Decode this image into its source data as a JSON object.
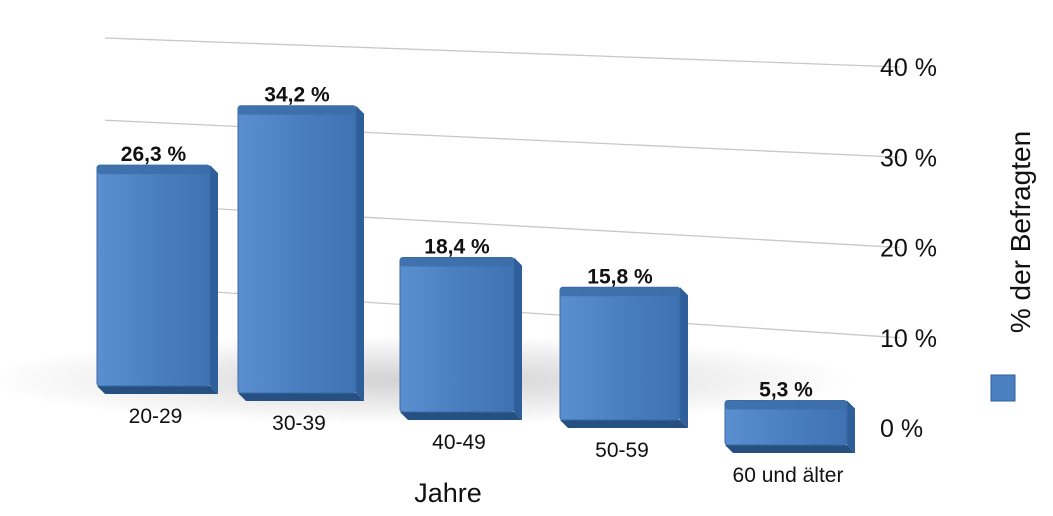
{
  "chart_data": {
    "type": "bar",
    "categories": [
      "20-29",
      "30-39",
      "40-49",
      "50-59",
      "60 und älter"
    ],
    "values": [
      26.3,
      34.2,
      18.4,
      15.8,
      5.3
    ],
    "value_labels": [
      "26,3 %",
      "34,2 %",
      "18,4 %",
      "15,8 %",
      "5,3 %"
    ],
    "y_ticks": [
      "0 %",
      "10 %",
      "20 %",
      "30 %",
      "40 %"
    ],
    "ylim": [
      0,
      40
    ],
    "xlabel": "Jahre",
    "ylabel": "% der Befragten",
    "grid": true,
    "legend_position": "right",
    "colors": {
      "bar": "#4a7fc0",
      "bar_dark": "#2e5f9a",
      "bar_top": "#3c6da8",
      "grid": "#c8c8c8"
    }
  }
}
